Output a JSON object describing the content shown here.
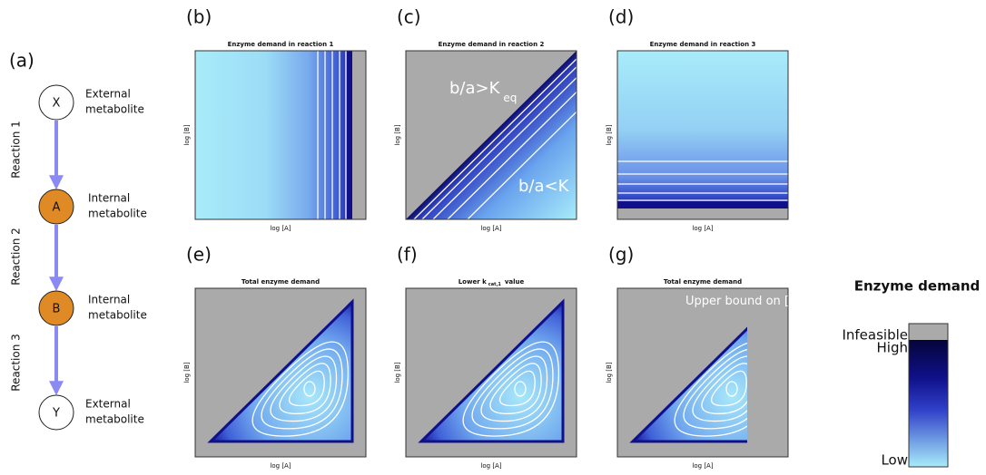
{
  "panel_a": {
    "label": "(a)",
    "nodes": [
      {
        "label": "X",
        "description": [
          "External",
          "metabolite"
        ]
      },
      {
        "label": "A",
        "description": [
          "Internal",
          "metabolite"
        ]
      },
      {
        "label": "B",
        "description": [
          "Internal",
          "metabolite"
        ]
      },
      {
        "label": "Y",
        "description": [
          "External",
          "metabolite"
        ]
      }
    ],
    "reactions": [
      "Reaction 1",
      "Reaction 2",
      "Reaction 3"
    ]
  },
  "panels": [
    {
      "label": "(b)",
      "title": "Enzyme demand in reaction 1",
      "xlabel": "log [A]",
      "ylabel": "log [B]"
    },
    {
      "label": "(c)",
      "title": "Enzyme demand in reaction 2",
      "xlabel": "log [A]",
      "ylabel": "log [B]",
      "annotations": [
        {
          "text": "b/a>K",
          "sub": "eq"
        },
        {
          "text": "b/a<K"
        }
      ]
    },
    {
      "label": "(d)",
      "title": "Enzyme demand in reaction 3",
      "xlabel": "log [A]",
      "ylabel": "log [B]"
    },
    {
      "label": "(e)",
      "title": "Total enzyme demand",
      "xlabel": "log [A]",
      "ylabel": "log [B]"
    },
    {
      "label": "(f)",
      "title": "Lower k",
      "title_sub": "cat,1",
      "title_end": "value",
      "xlabel": "log [A]",
      "ylabel": "log [B]"
    },
    {
      "label": "(g)",
      "title": "Total enzyme demand",
      "xlabel": "log [A]",
      "ylabel": "log [B]",
      "annotations": [
        {
          "text": "Upper bound on [A]"
        }
      ]
    }
  ],
  "legend": {
    "title": "Enzyme demand",
    "labels": [
      "Infeasible",
      "High",
      "Low"
    ]
  }
}
